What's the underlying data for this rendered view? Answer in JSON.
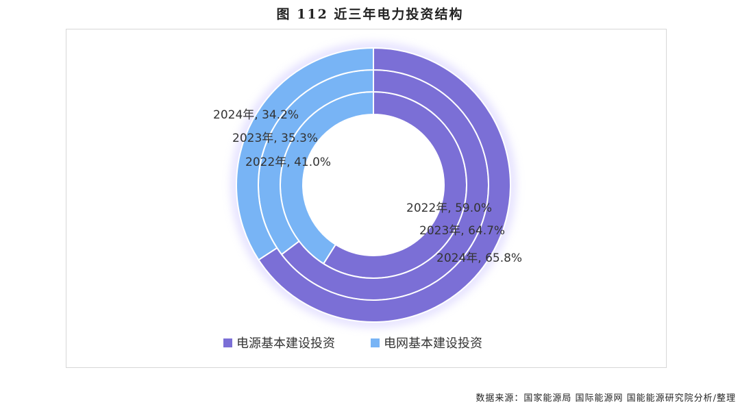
{
  "title": "图 112 近三年电力投资结构",
  "source": "数据来源：国家能源局 国际能源网 国能能源研究院分析/整理",
  "chart_data": {
    "type": "pie",
    "subtype": "concentric-donut",
    "title": "图 112 近三年电力投资结构",
    "categories": [
      "电源基本建设投资",
      "电网基本建设投资"
    ],
    "colors": [
      "#7b6fd6",
      "#78b4f5"
    ],
    "rings": [
      {
        "name": "2022年",
        "values": [
          59.0,
          41.0
        ],
        "labels": [
          "2022年, 59.0%",
          "2022年, 41.0%"
        ]
      },
      {
        "name": "2023年",
        "values": [
          64.7,
          35.3
        ],
        "labels": [
          "2023年, 64.7%",
          "2023年, 35.3%"
        ]
      },
      {
        "name": "2024年",
        "values": [
          65.8,
          34.2
        ],
        "labels": [
          "2024年, 65.8%",
          "2024年, 34.2%"
        ]
      }
    ],
    "legend": [
      "电源基本建设投资",
      "电网基本建设投资"
    ],
    "legend_position": "bottom"
  }
}
